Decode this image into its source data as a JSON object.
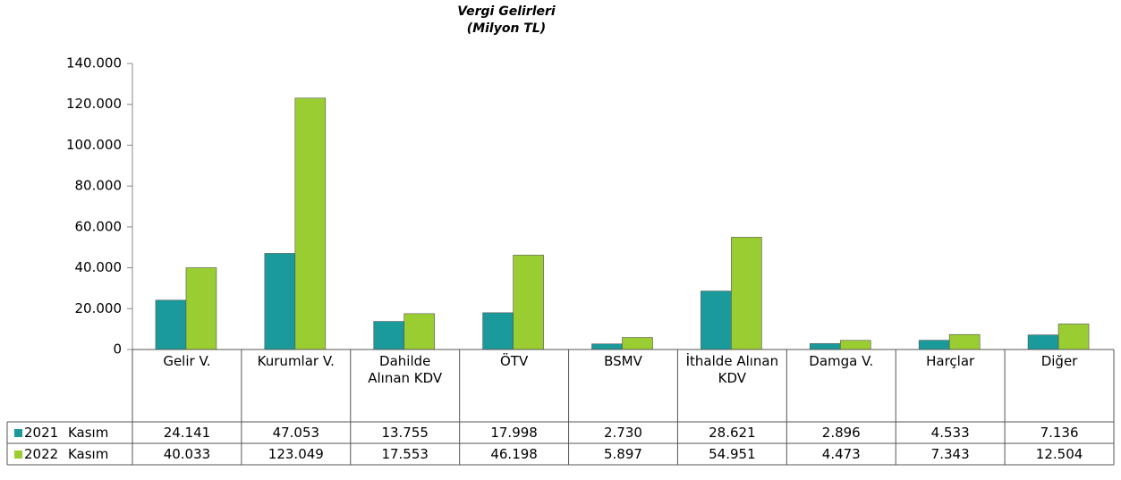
{
  "chart_data": {
    "type": "bar",
    "title": "Vergi Gelirleri",
    "subtitle": "(Milyon TL)",
    "categories": [
      "Gelir V.",
      "Kurumlar V.",
      "Dahilde Alınan KDV",
      "ÖTV",
      "BSMV",
      "İthalde Alınan KDV",
      "Damga V.",
      "Harçlar",
      "Diğer"
    ],
    "series": [
      {
        "name": "2021 Kasım",
        "color": "#1a9a9a",
        "values": [
          24141,
          47053,
          13755,
          17998,
          2730,
          28621,
          2896,
          4533,
          7136
        ],
        "value_labels": [
          "24.141",
          "47.053",
          "13.755",
          "17.998",
          "2.730",
          "28.621",
          "2.896",
          "4.533",
          "7.136"
        ]
      },
      {
        "name": "2022 Kasım",
        "color": "#9acd32",
        "values": [
          40033,
          123049,
          17553,
          46198,
          5897,
          54951,
          4473,
          7343,
          12504
        ],
        "value_labels": [
          "40.033",
          "123.049",
          "17.553",
          "46.198",
          "5.897",
          "54.951",
          "4.473",
          "7.343",
          "12.504"
        ]
      }
    ],
    "ylim": [
      0,
      140000
    ],
    "yticks": [
      0,
      {
        "value": 20000,
        "label": "20.000"
      },
      {
        "value": 40000,
        "label": "40.000"
      },
      {
        "value": 60000,
        "label": "60.000"
      },
      {
        "value": 80000,
        "label": "80.000"
      },
      {
        "value": 100000,
        "label": "100.000"
      },
      {
        "value": 120000,
        "label": "120.000"
      },
      {
        "value": 140000,
        "label": "140.000"
      }
    ],
    "grid": false
  }
}
